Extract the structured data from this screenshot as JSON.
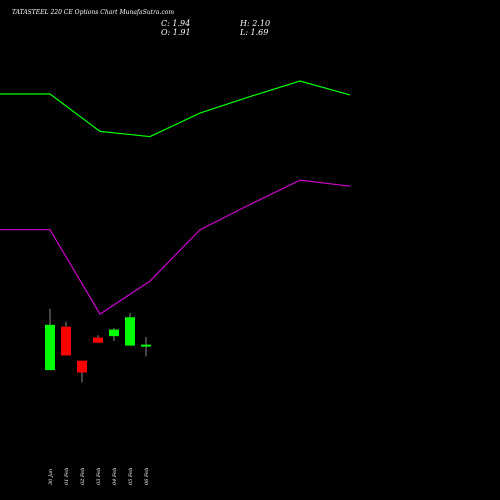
{
  "title": "TATASTEEL 220 CE Options Chart MunafaSutra.com",
  "ohlc": {
    "close": "C: 1.94",
    "high": "H: 2.10",
    "open": "O: 1.91",
    "low": "L: 1.69"
  },
  "colors": {
    "background": "#000000",
    "up": "#00ff00",
    "down": "#ff0000",
    "upper_band": "#00ff00",
    "lower_band": "#cc00cc",
    "text": "#ffffff"
  },
  "chart_data": {
    "type": "candlestick",
    "categories": [
      "30 Jan",
      "01 Feb",
      "02 Feb",
      "03 Feb",
      "04 Feb",
      "05 Feb",
      "06 Feb"
    ],
    "candles": [
      {
        "open": 1.4,
        "high": 2.7,
        "low": 1.4,
        "close": 2.36
      },
      {
        "open": 2.32,
        "high": 2.43,
        "low": 1.71,
        "close": 1.71
      },
      {
        "open": 1.6,
        "high": 1.6,
        "low": 1.14,
        "close": 1.35
      },
      {
        "open": 2.09,
        "high": 2.14,
        "low": 1.98,
        "close": 1.98
      },
      {
        "open": 2.12,
        "high": 2.29,
        "low": 2.02,
        "close": 2.26
      },
      {
        "open": 1.92,
        "high": 2.61,
        "low": 1.92,
        "close": 2.52
      },
      {
        "open": 1.91,
        "high": 2.1,
        "low": 1.69,
        "close": 1.94
      }
    ],
    "upper_band_x": [
      "",
      "30 Jan",
      "02 Feb",
      "04 Feb",
      "05 Feb",
      "06 Feb",
      "",
      ""
    ],
    "upper_band": [
      7.19,
      7.19,
      6.76,
      6.7,
      6.97,
      7.16,
      7.34,
      7.18
    ],
    "lower_band_x": [
      "",
      "30 Jan",
      "02 Feb",
      "04 Feb",
      "05 Feb",
      "06 Feb",
      "",
      ""
    ],
    "lower_band": [
      5.63,
      5.63,
      4.66,
      5.04,
      5.63,
      5.92,
      6.2,
      6.13
    ],
    "grid": false,
    "legend": "none"
  }
}
